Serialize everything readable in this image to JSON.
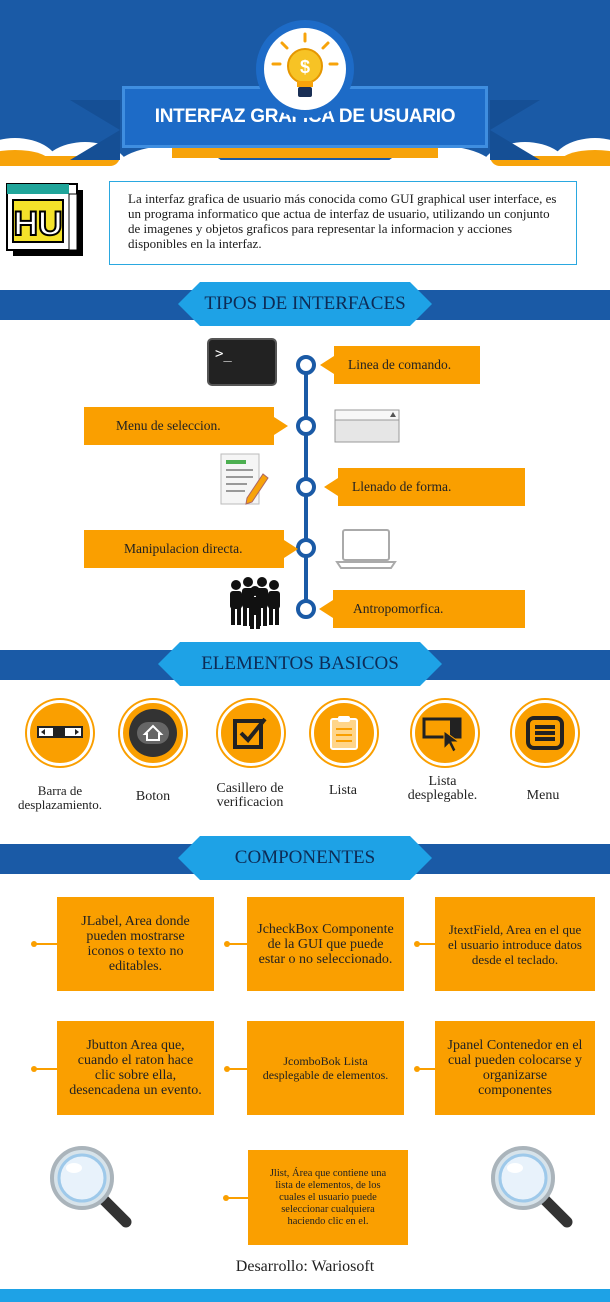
{
  "header": {
    "title": "INTERFAZ GRAFICA DE USUARIO",
    "icon": "lightbulb-dollar-icon",
    "badge_text": "HU"
  },
  "intro": {
    "text": "La interfaz grafica de usuario más conocida como GUI graphical user interface, es un programa informatico que actua de interfaz de usuario, utilizando un conjunto de imagenes y objetos graficos para representar la informacion y acciones disponibles en la interfaz."
  },
  "tipos": {
    "heading": "TIPOS DE INTERFACES",
    "items": [
      {
        "label": "Linea de comando.",
        "icon": "terminal-icon"
      },
      {
        "label": "Menu de seleccion.",
        "icon": "menu-bar-icon"
      },
      {
        "label": "Llenado de forma.",
        "icon": "form-pencil-icon"
      },
      {
        "label": "Manipulacion directa.",
        "icon": "laptop-icon"
      },
      {
        "label": "Antropomorfica.",
        "icon": "people-group-icon"
      }
    ]
  },
  "elementos": {
    "heading": "ELEMENTOS BASICOS",
    "items": [
      {
        "label": "Barra de desplazamiento.",
        "icon": "scrollbar-icon"
      },
      {
        "label": "Boton",
        "icon": "home-button-icon"
      },
      {
        "label": "Casillero de verificacion",
        "icon": "checkbox-icon"
      },
      {
        "label": "Lista",
        "icon": "clipboard-list-icon"
      },
      {
        "label": "Lista desplegable.",
        "icon": "dropdown-cursor-icon"
      },
      {
        "label": "Menu",
        "icon": "hamburger-menu-icon"
      }
    ]
  },
  "componentes": {
    "heading": "COMPONENTES",
    "items": [
      {
        "text": "JLabel, Area donde pueden mostrarse iconos o texto no editables."
      },
      {
        "text": "JcheckBox Componente de la GUI que puede estar o no seleccionado."
      },
      {
        "text": "JtextField, Area en el que el usuario introduce datos desde el teclado."
      },
      {
        "text": "Jbutton Area que, cuando el raton hace clic sobre ella, desencadena un evento."
      },
      {
        "text": "JcomboBok Lista desplegable de elementos."
      },
      {
        "text": "Jpanel Contenedor en el cual pueden colocarse y organizarse componentes"
      },
      {
        "text": "Jlist, Área que contiene una lista de elementos, de los cuales el usuario puede seleccionar cualquiera haciendo clic en el."
      }
    ]
  },
  "footer": {
    "credit": "Desarrollo: Wariosoft"
  },
  "colors": {
    "navy": "#1a5aa6",
    "sky": "#1ea2e6",
    "orange": "#fa9f00"
  }
}
